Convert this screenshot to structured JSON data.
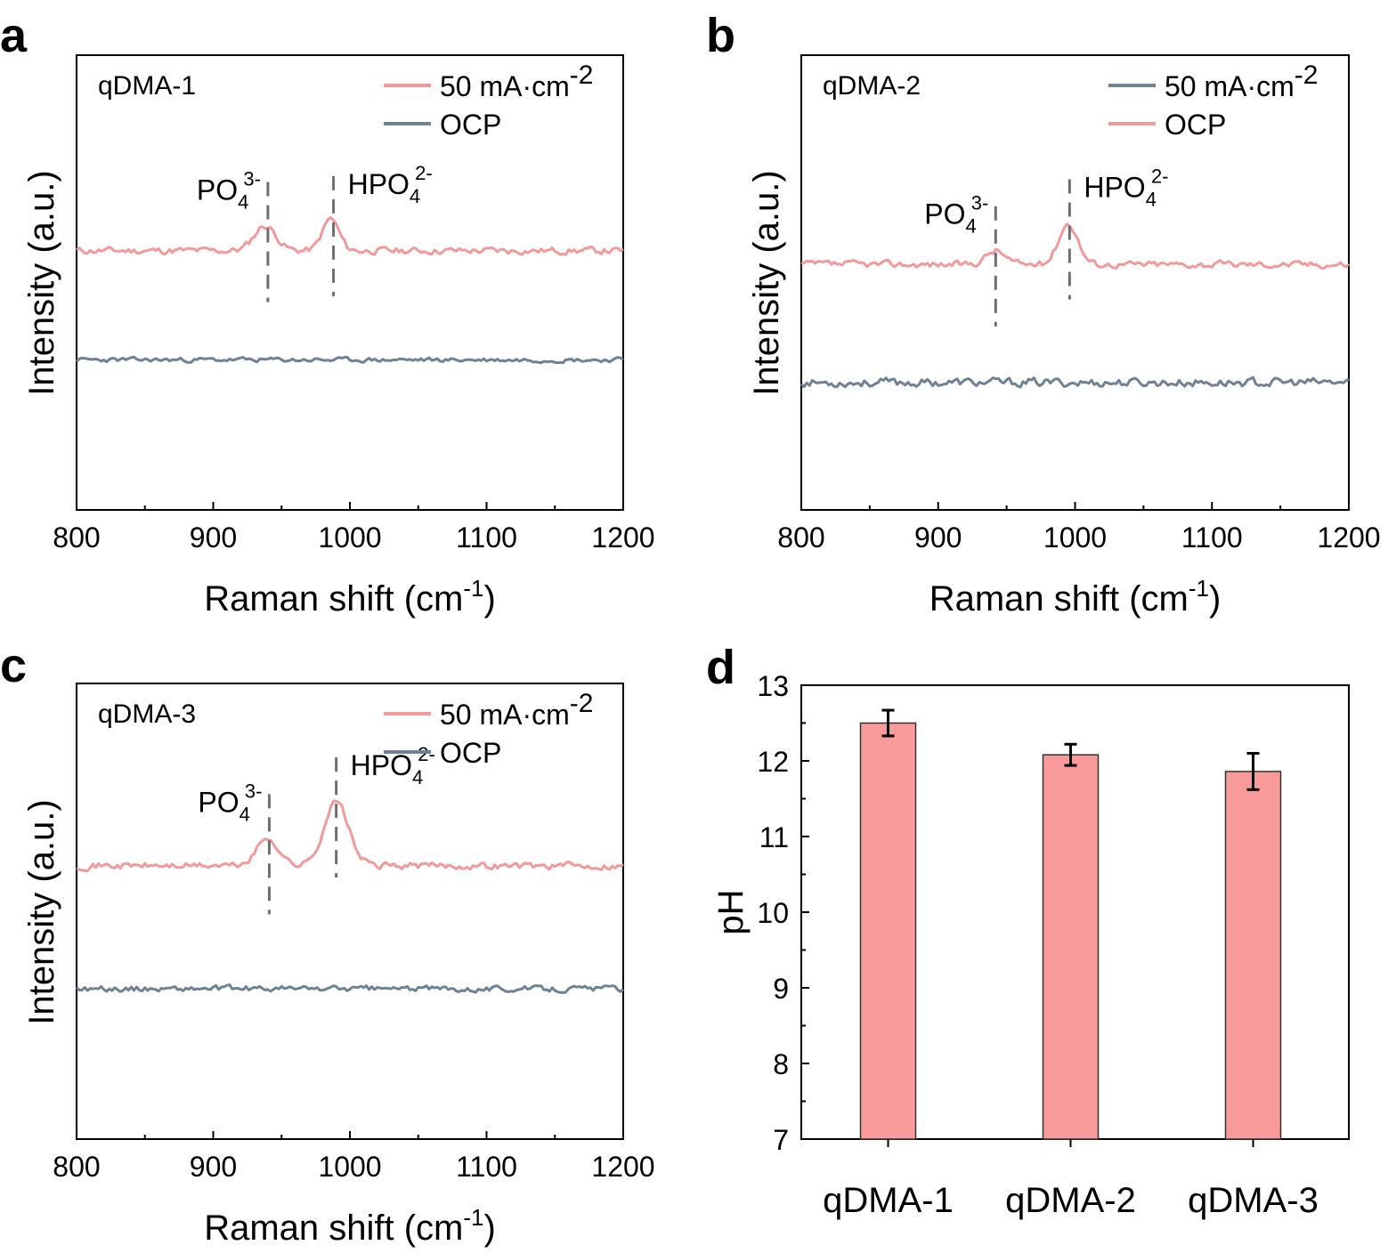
{
  "chart_data": [
    {
      "panel": "a",
      "type": "line",
      "sample": "qDMA-1",
      "xlabel": "Raman shift (cm",
      "xlabel_sup": "-1",
      "xlabel_end": ")",
      "ylabel": "Intensity (a.u.)",
      "xlim": [
        800,
        1200
      ],
      "xticks": [
        "800",
        "900",
        "1000",
        "1100",
        "1200"
      ],
      "legend_order": [
        0,
        1
      ],
      "series": [
        {
          "name": "50 mA·cm",
          "sup": "-2",
          "color": "#f29a9a",
          "baseline": 0.57,
          "noise": 0.012,
          "seed": 11,
          "peaks": [
            {
              "x": 938,
              "h": 0.055,
              "w": 8
            },
            {
              "x": 986,
              "h": 0.07,
              "w": 6
            }
          ]
        },
        {
          "name": "OCP",
          "sup": "",
          "color": "#6e8196",
          "baseline": 0.33,
          "noise": 0.008,
          "seed": 23,
          "peaks": []
        }
      ],
      "annotations": [
        {
          "x": 940,
          "label": "PO",
          "sub": "4",
          "sup": "3-",
          "side": "left"
        },
        {
          "x": 988,
          "label": "HPO",
          "sub": "4",
          "sup": "2-",
          "side": "right"
        }
      ]
    },
    {
      "panel": "b",
      "type": "line",
      "sample": "qDMA-2",
      "xlabel": "Raman shift (cm",
      "xlabel_sup": "-1",
      "xlabel_end": ")",
      "ylabel": "Intensity (a.u.)",
      "xlim": [
        800,
        1200
      ],
      "xticks": [
        "800",
        "900",
        "1000",
        "1100",
        "1200"
      ],
      "legend_order": [
        1,
        0
      ],
      "series": [
        {
          "name": "OCP",
          "sup": "",
          "color": "#f29a9a",
          "baseline": 0.54,
          "noise": 0.012,
          "seed": 37,
          "peaks": [
            {
              "x": 942,
              "h": 0.03,
              "w": 7
            },
            {
              "x": 995,
              "h": 0.09,
              "w": 7
            }
          ]
        },
        {
          "name": "50 mA·cm",
          "sup": "-2",
          "color": "#6e8196",
          "baseline": 0.28,
          "noise": 0.015,
          "seed": 53,
          "peaks": []
        }
      ],
      "annotations": [
        {
          "x": 942,
          "label": "PO",
          "sub": "4",
          "sup": "3-",
          "side": "left"
        },
        {
          "x": 996,
          "label": "HPO",
          "sub": "4",
          "sup": "2-",
          "side": "right"
        }
      ]
    },
    {
      "panel": "c",
      "type": "line",
      "sample": "qDMA-3",
      "xlabel": "Raman shift (cm",
      "xlabel_sup": "-1",
      "xlabel_end": ")",
      "ylabel": "Intensity (a.u.)",
      "xlim": [
        800,
        1200
      ],
      "xticks": [
        "800",
        "900",
        "1000",
        "1100",
        "1200"
      ],
      "legend_order": [
        0,
        1
      ],
      "series": [
        {
          "name": "50 mA·cm",
          "sup": "-2",
          "color": "#f29a9a",
          "baseline": 0.6,
          "noise": 0.012,
          "seed": 71,
          "peaks": [
            {
              "x": 940,
              "h": 0.06,
              "w": 8
            },
            {
              "x": 990,
              "h": 0.14,
              "w": 9
            }
          ]
        },
        {
          "name": "OCP",
          "sup": "",
          "color": "#6e8196",
          "baseline": 0.33,
          "noise": 0.01,
          "seed": 89,
          "peaks": []
        }
      ],
      "annotations": [
        {
          "x": 941,
          "label": "PO",
          "sub": "4",
          "sup": "3-",
          "side": "left"
        },
        {
          "x": 990,
          "label": "HPO",
          "sub": "4",
          "sup": "2-",
          "side": "right"
        }
      ]
    },
    {
      "panel": "d",
      "type": "bar",
      "ylabel": "pH",
      "ylim": [
        7,
        13
      ],
      "yticks": [
        "7",
        "8",
        "9",
        "10",
        "11",
        "12",
        "13"
      ],
      "categories": [
        "qDMA-1",
        "qDMA-2",
        "qDMA-3"
      ],
      "values": [
        12.5,
        12.08,
        11.86
      ],
      "errors": [
        0.17,
        0.14,
        0.24
      ],
      "color": "#f99a9a"
    }
  ]
}
